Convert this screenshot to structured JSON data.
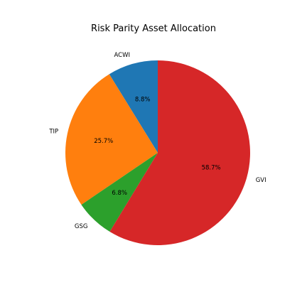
{
  "chart_data": {
    "type": "pie",
    "title": "Risk Parity Asset Allocation",
    "labels": [
      "ACWI",
      "TIP",
      "GSG",
      "GVI"
    ],
    "values": [
      8.8,
      25.7,
      6.8,
      58.7
    ],
    "autopct": [
      "8.8%",
      "25.7%",
      "6.8%",
      "58.7%"
    ],
    "colors": [
      "#1f77b4",
      "#ff7f0e",
      "#2ca02c",
      "#d62728"
    ],
    "start_angle_deg": 90,
    "direction": "counterclockwise"
  }
}
